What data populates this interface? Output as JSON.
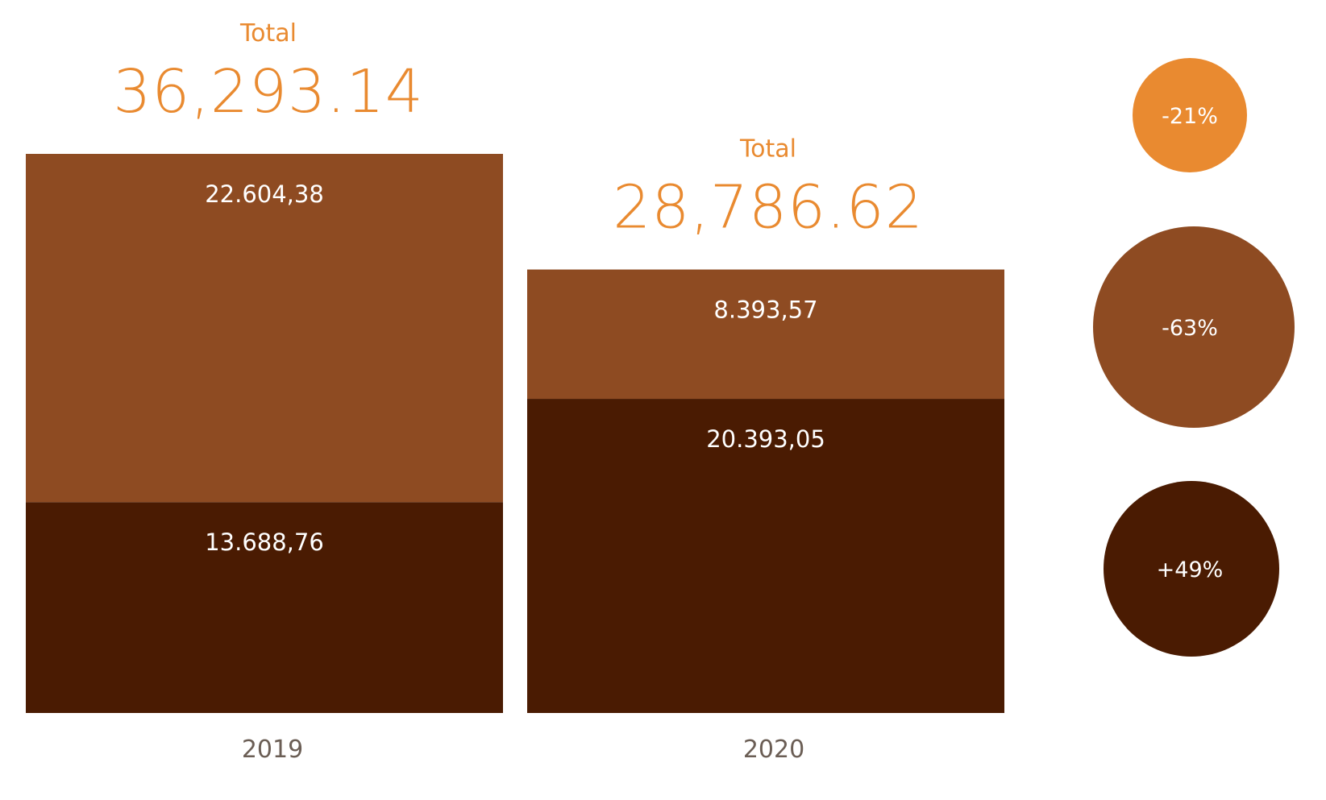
{
  "chart_data": {
    "type": "bar",
    "stacked": true,
    "categories": [
      "2019",
      "2020"
    ],
    "series": [
      {
        "values": [
          13688.76,
          20393.05
        ],
        "labels": [
          "13.688,76",
          "20.393,05"
        ],
        "color": "#4a1b02"
      },
      {
        "values": [
          22604.38,
          8393.57
        ],
        "labels": [
          "22.604,38",
          "8.393,57"
        ],
        "color": "#8e4b22"
      }
    ],
    "totals": [
      {
        "caption": "Total",
        "value": "36,293.14"
      },
      {
        "caption": "Total",
        "value": "28,786.62"
      }
    ],
    "changes": [
      {
        "label": "-21%",
        "color": "#e98a30"
      },
      {
        "label": "-63%",
        "color": "#8e4b22"
      },
      {
        "label": "+49%",
        "color": "#4a1b02"
      }
    ],
    "ylim": [
      0,
      36293.14
    ],
    "grid": false,
    "legend": "none",
    "title": "",
    "xlabel": "",
    "ylabel": ""
  }
}
